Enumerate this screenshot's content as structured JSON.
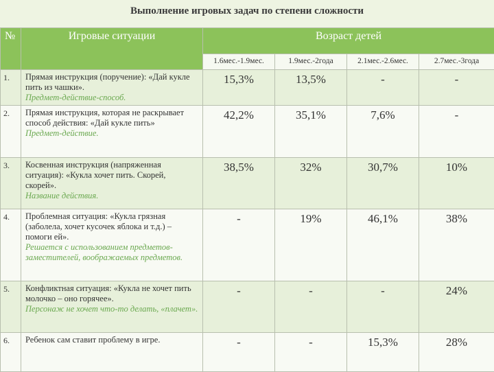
{
  "header": {
    "title": "Выполнение игровых задач по степени сложности"
  },
  "table": {
    "columns": {
      "number": "№",
      "situations": "Игровые ситуации",
      "age": "Возраст детей"
    },
    "ages": [
      "1.6мес.-1.9мес.",
      "1.9мес.-2года",
      "2.1мес.-2.6мес.",
      "2.7мес.-3года"
    ],
    "rows": [
      {
        "number": "1.",
        "text": "Прямая инструкция (поручение): «Дай кукле пить из чашки».",
        "note": "Предмет-действие-способ.",
        "values": [
          "15,3%",
          "13,5%",
          "-",
          "-"
        ]
      },
      {
        "number": "2.",
        "text": "Прямая инструкция, которая не раскрывает способ действия: «Дай кукле пить»",
        "note": "Предмет-действие.",
        "values": [
          "42,2%",
          "35,1%",
          "7,6%",
          "-"
        ]
      },
      {
        "number": "3.",
        "text": "Косвенная инструкция (напряженная ситуация): «Кукла хочет пить. Скорей, скорей».",
        "note": "Название действия.",
        "values": [
          "38,5%",
          "32%",
          "30,7%",
          "10%"
        ]
      },
      {
        "number": "4.",
        "text": "Проблемная ситуация: «Кукла грязная (заболела, хочет кусочек яблока и т.д.) – помоги ей».",
        "note": "Решается с использованием предметов-заместителей, воображаемых предметов.",
        "values": [
          "-",
          "19%",
          "46,1%",
          "38%"
        ]
      },
      {
        "number": "5.",
        "text": "Конфликтная ситуация: «Кукла не хочет пить молочко – оно горячее».",
        "note": "Персонаж не хочет что-то делать, «плачет».",
        "values": [
          "-",
          "-",
          "-",
          "24%"
        ]
      },
      {
        "number": "6.",
        "text": "Ребенок сам ставит проблему в игре.",
        "values": [
          "-",
          "-",
          "15,3%",
          "28%"
        ]
      }
    ]
  }
}
